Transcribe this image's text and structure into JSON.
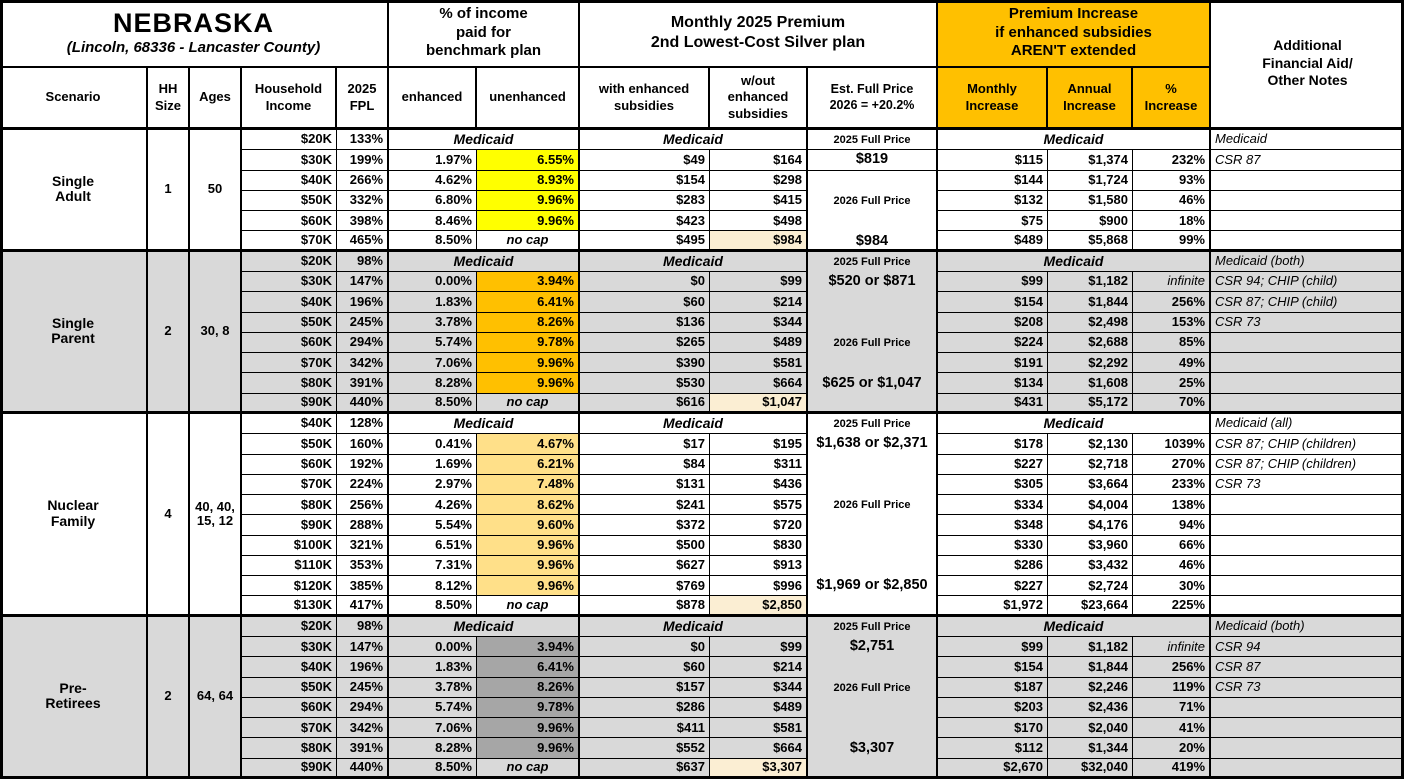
{
  "title": {
    "region": "NEBRASKA",
    "location": "(Lincoln, 68336 - Lancaster County)"
  },
  "header": {
    "scenario": "Scenario",
    "hh_size": "HH\nSize",
    "ages": "Ages",
    "household_income": "Household\nIncome",
    "fpl": "2025\nFPL",
    "benchmark_group": "% of income\npaid for\nbenchmark plan",
    "enhanced": "enhanced",
    "unenhanced": "unenhanced",
    "premium_group": "Monthly 2025 Premium\n2nd Lowest-Cost Silver plan",
    "with_subsidies": "with enhanced\nsubsidies",
    "without_subsidies": "w/out\nenhanced\nsubsidies",
    "est_full_price": "Est. Full Price\n2026 = +20.2%",
    "increase_group": "Premium Increase\nif enhanced subsidies\nAREN'T extended",
    "monthly_increase": "Monthly\nIncrease",
    "annual_increase": "Annual\nIncrease",
    "pct_increase": "%\nIncrease",
    "notes": "Additional\nFinancial Aid/\nOther Notes"
  },
  "labels": {
    "medicaid": "Medicaid",
    "no_cap": "no cap",
    "infinite": "infinite"
  },
  "colors": {
    "accent_header": "#FFC000",
    "section_alt_bg": "#D9D9D9",
    "highlight_yellow": "#FFFF00",
    "highlight_orange": "#FFC000",
    "highlight_tan": "#FFE089",
    "highlight_gray": "#A6A6A6",
    "highlight_cream": "#FBEED3",
    "border": "#000000"
  },
  "sections": [
    {
      "scenario": "Single\nAdult",
      "hh_size": "1",
      "ages": "50",
      "bg": "#FFFFFF",
      "unenhanced_fill": "#FFFF00",
      "fp_lines": [
        {
          "row": 0,
          "kind": "label",
          "text": "2025 Full Price"
        },
        {
          "row": 1,
          "kind": "value",
          "text": "$819"
        },
        {
          "row": 3,
          "kind": "label",
          "text": "2026 Full Price"
        },
        {
          "row": 5,
          "kind": "value",
          "text": "$984"
        }
      ],
      "fp_dividers": [
        0,
        1
      ],
      "rows": [
        {
          "income": "$20K",
          "fpl": "133%",
          "medicaid": true,
          "note": "Medicaid"
        },
        {
          "income": "$30K",
          "fpl": "199%",
          "enhanced": "1.97%",
          "unenhanced": "6.55%",
          "with_sub": "$49",
          "wout_sub": "$164",
          "monthly": "$115",
          "annual": "$1,374",
          "pct": "232%",
          "note": "CSR 87"
        },
        {
          "income": "$40K",
          "fpl": "266%",
          "enhanced": "4.62%",
          "unenhanced": "8.93%",
          "with_sub": "$154",
          "wout_sub": "$298",
          "monthly": "$144",
          "annual": "$1,724",
          "pct": "93%",
          "note": ""
        },
        {
          "income": "$50K",
          "fpl": "332%",
          "enhanced": "6.80%",
          "unenhanced": "9.96%",
          "with_sub": "$283",
          "wout_sub": "$415",
          "monthly": "$132",
          "annual": "$1,580",
          "pct": "46%",
          "note": ""
        },
        {
          "income": "$60K",
          "fpl": "398%",
          "enhanced": "8.46%",
          "unenhanced": "9.96%",
          "with_sub": "$423",
          "wout_sub": "$498",
          "monthly": "$75",
          "annual": "$900",
          "pct": "18%",
          "note": ""
        },
        {
          "income": "$70K",
          "fpl": "465%",
          "enhanced": "8.50%",
          "no_cap": true,
          "with_sub": "$495",
          "wout_sub": "$984",
          "wout_hl": true,
          "monthly": "$489",
          "annual": "$5,868",
          "pct": "99%",
          "note": ""
        }
      ]
    },
    {
      "scenario": "Single\nParent",
      "hh_size": "2",
      "ages": "30, 8",
      "bg": "#D9D9D9",
      "unenhanced_fill": "#FFC000",
      "fp_lines": [
        {
          "row": 0,
          "kind": "label",
          "text": "2025 Full Price"
        },
        {
          "row": 1,
          "kind": "value",
          "text": "$520 or $871"
        },
        {
          "row": 4,
          "kind": "label",
          "text": "2026 Full Price"
        },
        {
          "row": 6,
          "kind": "value",
          "text": "$625 or $1,047"
        }
      ],
      "fp_dividers": [],
      "rows": [
        {
          "income": "$20K",
          "fpl": "98%",
          "medicaid": true,
          "note": "Medicaid (both)"
        },
        {
          "income": "$30K",
          "fpl": "147%",
          "enhanced": "0.00%",
          "unenhanced": "3.94%",
          "with_sub": "$0",
          "wout_sub": "$99",
          "monthly": "$99",
          "annual": "$1,182",
          "pct": "infinite",
          "note": "CSR 94; CHIP (child)"
        },
        {
          "income": "$40K",
          "fpl": "196%",
          "enhanced": "1.83%",
          "unenhanced": "6.41%",
          "with_sub": "$60",
          "wout_sub": "$214",
          "monthly": "$154",
          "annual": "$1,844",
          "pct": "256%",
          "note": "CSR 87; CHIP (child)"
        },
        {
          "income": "$50K",
          "fpl": "245%",
          "enhanced": "3.78%",
          "unenhanced": "8.26%",
          "with_sub": "$136",
          "wout_sub": "$344",
          "monthly": "$208",
          "annual": "$2,498",
          "pct": "153%",
          "note": "CSR 73"
        },
        {
          "income": "$60K",
          "fpl": "294%",
          "enhanced": "5.74%",
          "unenhanced": "9.78%",
          "with_sub": "$265",
          "wout_sub": "$489",
          "monthly": "$224",
          "annual": "$2,688",
          "pct": "85%",
          "note": ""
        },
        {
          "income": "$70K",
          "fpl": "342%",
          "enhanced": "7.06%",
          "unenhanced": "9.96%",
          "with_sub": "$390",
          "wout_sub": "$581",
          "monthly": "$191",
          "annual": "$2,292",
          "pct": "49%",
          "note": ""
        },
        {
          "income": "$80K",
          "fpl": "391%",
          "enhanced": "8.28%",
          "unenhanced": "9.96%",
          "with_sub": "$530",
          "wout_sub": "$664",
          "monthly": "$134",
          "annual": "$1,608",
          "pct": "25%",
          "note": ""
        },
        {
          "income": "$90K",
          "fpl": "440%",
          "enhanced": "8.50%",
          "no_cap": true,
          "with_sub": "$616",
          "wout_sub": "$1,047",
          "wout_hl": true,
          "monthly": "$431",
          "annual": "$5,172",
          "pct": "70%",
          "note": ""
        }
      ]
    },
    {
      "scenario": "Nuclear\nFamily",
      "hh_size": "4",
      "ages": "40, 40,\n15, 12",
      "bg": "#FFFFFF",
      "unenhanced_fill": "#FFE089",
      "fp_lines": [
        {
          "row": 0,
          "kind": "label",
          "text": "2025 Full Price"
        },
        {
          "row": 1,
          "kind": "value",
          "text": "$1,638 or $2,371"
        },
        {
          "row": 4,
          "kind": "label",
          "text": "2026 Full Price"
        },
        {
          "row": 8,
          "kind": "value",
          "text": "$1,969 or $2,850"
        }
      ],
      "fp_dividers": [],
      "rows": [
        {
          "income": "$40K",
          "fpl": "128%",
          "medicaid": true,
          "note": "Medicaid (all)"
        },
        {
          "income": "$50K",
          "fpl": "160%",
          "enhanced": "0.41%",
          "unenhanced": "4.67%",
          "with_sub": "$17",
          "wout_sub": "$195",
          "monthly": "$178",
          "annual": "$2,130",
          "pct": "1039%",
          "note": "CSR 87; CHIP (children)"
        },
        {
          "income": "$60K",
          "fpl": "192%",
          "enhanced": "1.69%",
          "unenhanced": "6.21%",
          "with_sub": "$84",
          "wout_sub": "$311",
          "monthly": "$227",
          "annual": "$2,718",
          "pct": "270%",
          "note": "CSR 87; CHIP (children)"
        },
        {
          "income": "$70K",
          "fpl": "224%",
          "enhanced": "2.97%",
          "unenhanced": "7.48%",
          "with_sub": "$131",
          "wout_sub": "$436",
          "monthly": "$305",
          "annual": "$3,664",
          "pct": "233%",
          "note": "CSR 73"
        },
        {
          "income": "$80K",
          "fpl": "256%",
          "enhanced": "4.26%",
          "unenhanced": "8.62%",
          "with_sub": "$241",
          "wout_sub": "$575",
          "monthly": "$334",
          "annual": "$4,004",
          "pct": "138%",
          "note": ""
        },
        {
          "income": "$90K",
          "fpl": "288%",
          "enhanced": "5.54%",
          "unenhanced": "9.60%",
          "with_sub": "$372",
          "wout_sub": "$720",
          "monthly": "$348",
          "annual": "$4,176",
          "pct": "94%",
          "note": ""
        },
        {
          "income": "$100K",
          "fpl": "321%",
          "enhanced": "6.51%",
          "unenhanced": "9.96%",
          "with_sub": "$500",
          "wout_sub": "$830",
          "monthly": "$330",
          "annual": "$3,960",
          "pct": "66%",
          "note": ""
        },
        {
          "income": "$110K",
          "fpl": "353%",
          "enhanced": "7.31%",
          "unenhanced": "9.96%",
          "with_sub": "$627",
          "wout_sub": "$913",
          "monthly": "$286",
          "annual": "$3,432",
          "pct": "46%",
          "note": ""
        },
        {
          "income": "$120K",
          "fpl": "385%",
          "enhanced": "8.12%",
          "unenhanced": "9.96%",
          "with_sub": "$769",
          "wout_sub": "$996",
          "monthly": "$227",
          "annual": "$2,724",
          "pct": "30%",
          "note": ""
        },
        {
          "income": "$130K",
          "fpl": "417%",
          "enhanced": "8.50%",
          "no_cap": true,
          "with_sub": "$878",
          "wout_sub": "$2,850",
          "wout_hl": true,
          "monthly": "$1,972",
          "annual": "$23,664",
          "pct": "225%",
          "note": ""
        }
      ]
    },
    {
      "scenario": "Pre-\nRetirees",
      "hh_size": "2",
      "ages": "64, 64",
      "bg": "#D9D9D9",
      "unenhanced_fill": "#A6A6A6",
      "fp_lines": [
        {
          "row": 0,
          "kind": "label",
          "text": "2025 Full Price"
        },
        {
          "row": 1,
          "kind": "value",
          "text": "$2,751"
        },
        {
          "row": 3,
          "kind": "label",
          "text": "2026 Full Price"
        },
        {
          "row": 6,
          "kind": "value",
          "text": "$3,307"
        }
      ],
      "fp_dividers": [],
      "rows": [
        {
          "income": "$20K",
          "fpl": "98%",
          "medicaid": true,
          "note": "Medicaid (both)"
        },
        {
          "income": "$30K",
          "fpl": "147%",
          "enhanced": "0.00%",
          "unenhanced": "3.94%",
          "with_sub": "$0",
          "wout_sub": "$99",
          "monthly": "$99",
          "annual": "$1,182",
          "pct": "infinite",
          "note": "CSR 94"
        },
        {
          "income": "$40K",
          "fpl": "196%",
          "enhanced": "1.83%",
          "unenhanced": "6.41%",
          "with_sub": "$60",
          "wout_sub": "$214",
          "monthly": "$154",
          "annual": "$1,844",
          "pct": "256%",
          "note": "CSR 87"
        },
        {
          "income": "$50K",
          "fpl": "245%",
          "enhanced": "3.78%",
          "unenhanced": "8.26%",
          "with_sub": "$157",
          "wout_sub": "$344",
          "monthly": "$187",
          "annual": "$2,246",
          "pct": "119%",
          "note": "CSR 73"
        },
        {
          "income": "$60K",
          "fpl": "294%",
          "enhanced": "5.74%",
          "unenhanced": "9.78%",
          "with_sub": "$286",
          "wout_sub": "$489",
          "monthly": "$203",
          "annual": "$2,436",
          "pct": "71%",
          "note": ""
        },
        {
          "income": "$70K",
          "fpl": "342%",
          "enhanced": "7.06%",
          "unenhanced": "9.96%",
          "with_sub": "$411",
          "wout_sub": "$581",
          "monthly": "$170",
          "annual": "$2,040",
          "pct": "41%",
          "note": ""
        },
        {
          "income": "$80K",
          "fpl": "391%",
          "enhanced": "8.28%",
          "unenhanced": "9.96%",
          "with_sub": "$552",
          "wout_sub": "$664",
          "monthly": "$112",
          "annual": "$1,344",
          "pct": "20%",
          "note": ""
        },
        {
          "income": "$90K",
          "fpl": "440%",
          "enhanced": "8.50%",
          "no_cap": true,
          "with_sub": "$637",
          "wout_sub": "$3,307",
          "wout_hl": true,
          "monthly": "$2,670",
          "annual": "$32,040",
          "pct": "419%",
          "note": ""
        }
      ]
    }
  ]
}
